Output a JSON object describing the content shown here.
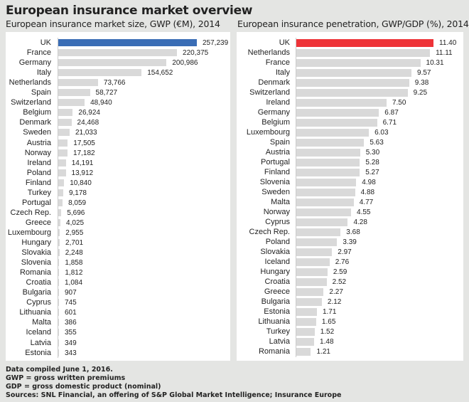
{
  "title": "European insurance market overview",
  "colors": {
    "background": "#e4e5e3",
    "bar": "#d9d9d9",
    "highlight_left": "#3a6db5",
    "highlight_right": "#ee3338"
  },
  "chart_data": [
    {
      "type": "bar",
      "orientation": "horizontal",
      "title": "European insurance market size, GWP (€M), 2014",
      "categories": [
        "UK",
        "France",
        "Germany",
        "Italy",
        "Netherlands",
        "Spain",
        "Switzerland",
        "Belgium",
        "Denmark",
        "Sweden",
        "Austria",
        "Norway",
        "Ireland",
        "Poland",
        "Finland",
        "Turkey",
        "Portugal",
        "Czech Rep.",
        "Greece",
        "Luxembourg",
        "Hungary",
        "Slovakia",
        "Slovenia",
        "Romania",
        "Croatia",
        "Bulgaria",
        "Cyprus",
        "Lithuania",
        "Malta",
        "Iceland",
        "Latvia",
        "Estonia"
      ],
      "values": [
        257239,
        220375,
        200986,
        154652,
        73766,
        58727,
        48940,
        26924,
        24468,
        21033,
        17505,
        17182,
        14191,
        13912,
        10840,
        9178,
        8059,
        5696,
        4025,
        2955,
        2701,
        2248,
        1858,
        1812,
        1084,
        907,
        745,
        601,
        386,
        355,
        349,
        343
      ],
      "labels": [
        "257,239",
        "220,375",
        "200,986",
        "154,652",
        "73,766",
        "58,727",
        "48,940",
        "26,924",
        "24,468",
        "21,033",
        "17,505",
        "17,182",
        "14,191",
        "13,912",
        "10,840",
        "9,178",
        "8,059",
        "5,696",
        "4,025",
        "2,955",
        "2,701",
        "2,248",
        "1,858",
        "1,812",
        "1,084",
        "907",
        "745",
        "601",
        "386",
        "355",
        "349",
        "343"
      ],
      "highlight": "UK",
      "grid": false
    },
    {
      "type": "bar",
      "orientation": "horizontal",
      "title": "European insurance penetration, GWP/GDP (%), 2014",
      "categories": [
        "UK",
        "Netherlands",
        "France",
        "Italy",
        "Denmark",
        "Switzerland",
        "Ireland",
        "Germany",
        "Belgium",
        "Luxembourg",
        "Spain",
        "Austria",
        "Portugal",
        "Finland",
        "Slovenia",
        "Sweden",
        "Malta",
        "Norway",
        "Cyprus",
        "Czech Rep.",
        "Poland",
        "Slovakia",
        "Iceland",
        "Hungary",
        "Croatia",
        "Greece",
        "Bulgaria",
        "Estonia",
        "Lithuania",
        "Turkey",
        "Latvia",
        "Romania"
      ],
      "values": [
        11.4,
        11.11,
        10.31,
        9.57,
        9.38,
        9.25,
        7.5,
        6.87,
        6.71,
        6.03,
        5.63,
        5.3,
        5.28,
        5.27,
        4.98,
        4.88,
        4.77,
        4.55,
        4.28,
        3.68,
        3.39,
        2.97,
        2.76,
        2.59,
        2.52,
        2.27,
        2.12,
        1.71,
        1.65,
        1.52,
        1.48,
        1.21
      ],
      "labels": [
        "11.40",
        "11.11",
        "10.31",
        "9.57",
        "9.38",
        "9.25",
        "7.50",
        "6.87",
        "6.71",
        "6.03",
        "5.63",
        "5.30",
        "5.28",
        "5.27",
        "4.98",
        "4.88",
        "4.77",
        "4.55",
        "4.28",
        "3.68",
        "3.39",
        "2.97",
        "2.76",
        "2.59",
        "2.52",
        "2.27",
        "2.12",
        "1.71",
        "1.65",
        "1.52",
        "1.48",
        "1.21"
      ],
      "highlight": "UK",
      "grid": false
    }
  ],
  "footer": [
    "Data compiled June 1, 2016.",
    "GWP = gross written premiums",
    "GDP = gross domestic product (nominal)",
    "Sources: SNL Financial, an offering of S&P Global Market Intelligence; Insurance Europe"
  ]
}
